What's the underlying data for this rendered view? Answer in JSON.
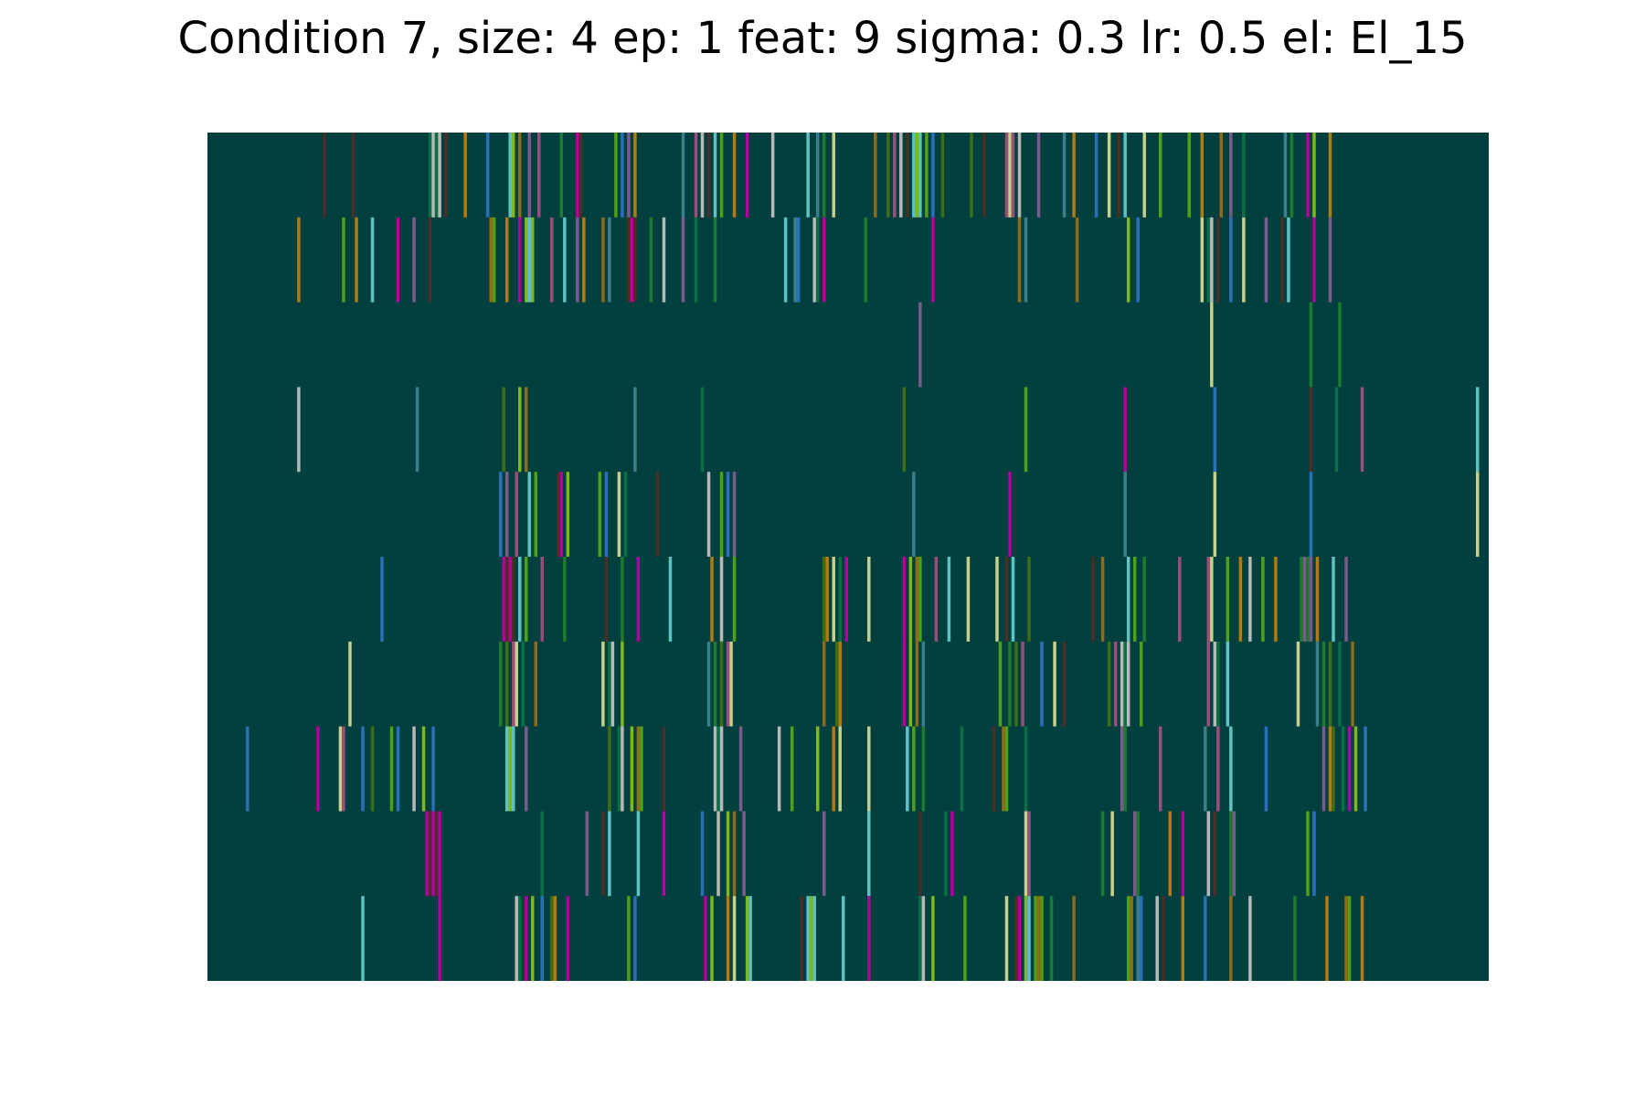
{
  "chart_data": {
    "type": "heatmap",
    "title": "Condition 7, size: 4 ep: 1 feat: 9 sigma: 0.3 lr: 0.5 el: El_15",
    "xlabel": "",
    "ylabel": "",
    "axes_visible": false,
    "grid": false,
    "legend": "none",
    "background_color": "#023f3f",
    "n_rows": 10,
    "n_columns": 400,
    "palette": [
      "#1e7a2e",
      "#3a7f8a",
      "#8f6b1a",
      "#7fb81c",
      "#b4009e",
      "#0a6f45",
      "#c6cf8c",
      "#b27a0f",
      "#7c5a8c",
      "#2b6fb8",
      "#4ea014",
      "#5ec2c2",
      "#4b2e24",
      "#b8b8b8",
      "#9a4f7a",
      "#3d6e14"
    ],
    "rows": [
      {
        "row": 1,
        "stripe_columns": [
          36,
          45,
          69,
          70,
          71,
          72,
          74,
          80,
          87,
          94,
          95,
          97,
          100,
          103,
          110,
          115,
          116,
          127,
          129,
          131,
          133,
          148,
          152,
          154,
          156,
          158,
          160,
          164,
          168,
          176,
          187,
          190,
          192,
          195,
          208,
          212,
          214,
          216,
          218,
          220,
          221,
          222,
          224,
          226,
          229,
          238,
          242,
          249,
          250,
          251,
          253,
          259,
          267,
          270,
          277,
          281,
          284,
          286,
          292,
          297,
          306,
          310,
          316,
          319,
          323,
          336,
          338,
          343,
          345,
          350
        ]
      },
      {
        "row": 2,
        "stripe_columns": [
          28,
          42,
          46,
          51,
          59,
          64,
          69,
          88,
          89,
          93,
          97,
          99,
          100,
          101,
          107,
          111,
          115,
          117,
          123,
          125,
          131,
          132,
          133,
          138,
          142,
          148,
          152,
          158,
          180,
          183,
          184,
          189,
          190,
          192,
          205,
          226,
          253,
          255,
          271,
          287,
          290,
          310,
          312,
          313,
          315,
          319,
          323,
          330,
          335,
          337,
          345,
          350
        ]
      },
      {
        "row": 3,
        "stripe_columns": [
          222,
          313,
          344,
          353
        ]
      },
      {
        "row": 4,
        "stripe_columns": [
          28,
          65,
          92,
          97,
          99,
          133,
          154,
          217,
          255,
          286,
          314,
          344,
          352,
          360,
          396
        ]
      },
      {
        "row": 5,
        "stripe_columns": [
          91,
          93,
          96,
          100,
          102,
          109,
          110,
          112,
          122,
          124,
          128,
          130,
          140,
          156,
          160,
          162,
          164,
          220,
          250,
          286,
          314,
          344,
          396
        ]
      },
      {
        "row": 6,
        "stripe_columns": [
          54,
          92,
          93,
          94,
          95,
          97,
          99,
          104,
          111,
          124,
          129,
          134,
          144,
          157,
          160,
          164,
          192,
          193,
          195,
          197,
          199,
          206,
          217,
          219,
          221,
          222,
          227,
          231,
          237,
          246,
          249,
          251,
          256,
          276,
          279,
          287,
          289,
          292,
          303,
          312,
          313,
          318,
          322,
          325,
          329,
          333,
          341,
          342,
          343,
          344,
          346,
          351,
          355
        ]
      },
      {
        "row": 7,
        "stripe_columns": [
          44,
          91,
          93,
          95,
          96,
          98,
          102,
          123,
          125,
          126,
          129,
          156,
          158,
          160,
          162,
          163,
          192,
          196,
          197,
          217,
          219,
          221,
          223,
          247,
          250,
          252,
          254,
          260,
          264,
          267,
          281,
          283,
          285,
          286,
          287,
          291,
          312,
          314,
          315,
          318,
          340,
          346,
          348,
          350,
          353,
          357
        ]
      },
      {
        "row": 8,
        "stripe_columns": [
          12,
          34,
          41,
          42,
          48,
          51,
          57,
          59,
          64,
          67,
          70,
          93,
          94,
          95,
          99,
          125,
          128,
          129,
          132,
          134,
          135,
          142,
          158,
          159,
          160,
          166,
          178,
          182,
          190,
          195,
          197,
          206,
          218,
          220,
          223,
          235,
          245,
          248,
          249,
          255,
          285,
          286,
          297,
          311,
          315,
          319,
          330,
          348,
          350,
          351,
          354,
          356,
          358,
          361
        ]
      },
      {
        "row": 9,
        "stripe_columns": [
          68,
          69,
          70,
          71,
          72,
          104,
          118,
          123,
          125,
          134,
          142,
          154,
          159,
          162,
          164,
          167,
          192,
          206,
          222,
          230,
          232,
          255,
          256,
          279,
          282,
          289,
          290,
          300,
          304,
          312,
          314,
          319,
          320,
          343,
          345
        ]
      },
      {
        "row": 10,
        "stripe_columns": [
          48,
          72,
          96,
          97,
          99,
          101,
          104,
          107,
          108,
          112,
          131,
          133,
          155,
          157,
          162,
          164,
          168,
          169,
          185,
          187,
          188,
          189,
          198,
          206,
          222,
          223,
          226,
          236,
          249,
          252,
          253,
          255,
          256,
          258,
          259,
          260,
          263,
          270,
          287,
          288,
          290,
          291,
          296,
          298,
          304,
          311,
          319,
          325,
          339,
          349,
          355,
          356,
          360
        ]
      }
    ]
  }
}
